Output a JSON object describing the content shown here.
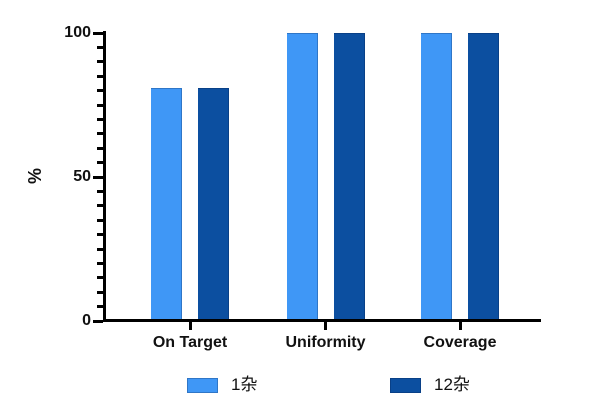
{
  "chart_data": {
    "type": "bar",
    "title": "",
    "xlabel": "",
    "ylabel": "%",
    "ylim": [
      0,
      100
    ],
    "yticks": [
      0,
      50,
      100
    ],
    "minor_tick_step": 5,
    "categories": [
      "On Target",
      "Uniformity",
      "Coverage"
    ],
    "series": [
      {
        "name": "1杂",
        "color": "#3F97F6",
        "values": [
          81,
          100,
          100
        ]
      },
      {
        "name": "12杂",
        "color": "#0C4FA0",
        "values": [
          81,
          100,
          100
        ]
      }
    ],
    "legend_position": "bottom",
    "grid": false,
    "background": "#ffffff",
    "axis_color": "#000000",
    "text_color": "#111111"
  }
}
